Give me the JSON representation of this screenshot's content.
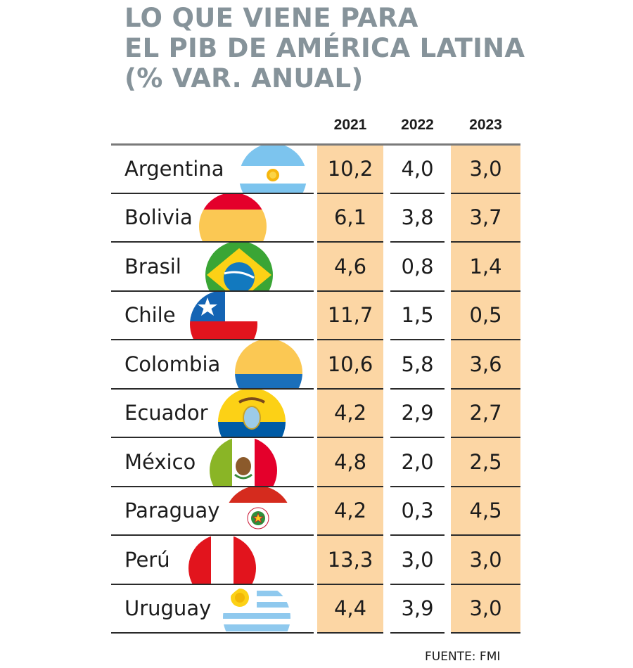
{
  "chart_data": {
    "type": "table",
    "title": "LO QUE VIENE PARA EL PIB DE AMÉRICA LATINA (% VAR. ANUAL)",
    "title_lines": [
      "LO QUE VIENE PARA",
      "EL PIB DE AMÉRICA LATINA",
      "(% VAR. ANUAL)"
    ],
    "columns": [
      "2021",
      "2022",
      "2023"
    ],
    "highlighted_columns": [
      "2021",
      "2023"
    ],
    "rows": [
      {
        "country": "Argentina",
        "flag": "argentina-flag",
        "values": [
          "10,2",
          "4,0",
          "3,0"
        ]
      },
      {
        "country": "Bolivia",
        "flag": "bolivia-flag",
        "values": [
          "6,1",
          "3,8",
          "3,7"
        ]
      },
      {
        "country": "Brasil",
        "flag": "brazil-flag",
        "values": [
          "4,6",
          "0,8",
          "1,4"
        ]
      },
      {
        "country": "Chile",
        "flag": "chile-flag",
        "values": [
          "11,7",
          "1,5",
          "0,5"
        ]
      },
      {
        "country": "Colombia",
        "flag": "colombia-flag",
        "values": [
          "10,6",
          "5,8",
          "3,6"
        ]
      },
      {
        "country": "Ecuador",
        "flag": "ecuador-flag",
        "values": [
          "4,2",
          "2,9",
          "2,7"
        ]
      },
      {
        "country": "México",
        "flag": "mexico-flag",
        "values": [
          "4,8",
          "2,0",
          "2,5"
        ]
      },
      {
        "country": "Paraguay",
        "flag": "paraguay-flag",
        "values": [
          "4,2",
          "0,3",
          "4,5"
        ]
      },
      {
        "country": "Perú",
        "flag": "peru-flag",
        "values": [
          "13,3",
          "3,0",
          "3,0"
        ]
      },
      {
        "country": "Uruguay",
        "flag": "uruguay-flag",
        "values": [
          "4,4",
          "3,9",
          "3,0"
        ]
      }
    ],
    "source": "FUENTE: FMI"
  },
  "colors": {
    "title": "#86939a",
    "highlight": "#fcd6a4",
    "text": "#1c1c1c"
  }
}
